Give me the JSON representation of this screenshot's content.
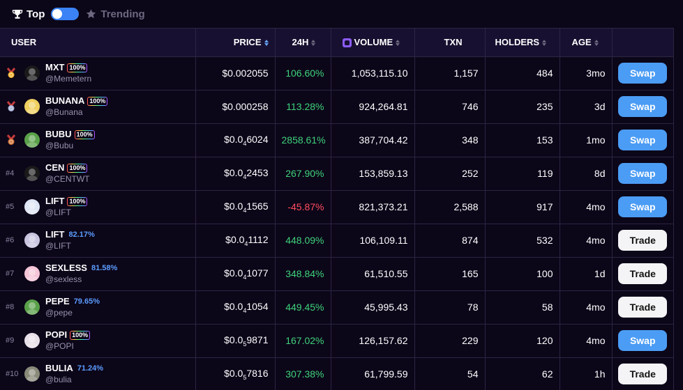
{
  "tabs": {
    "top_label": "Top",
    "trending_label": "Trending"
  },
  "columns": {
    "user": "USER",
    "price": "PRICE",
    "change": "24H",
    "volume": "VOLUME",
    "txn": "TXN",
    "holders": "HOLDERS",
    "age": "AGE"
  },
  "rows": [
    {
      "rank": "",
      "medal": "gold",
      "symbol": "MXT",
      "handle": "@Memetern",
      "badge": "100%",
      "pct": "",
      "price_pre": "$0.002055",
      "price_sub": "",
      "price_post": "",
      "change": "106.60%",
      "change_dir": "up",
      "volume": "1,053,115.10",
      "txn": "1,157",
      "holders": "484",
      "age": "3mo",
      "action": "Swap",
      "action_type": "swap",
      "avatar_color": "#1a1a1a",
      "avatar_icon": "frog-avatar-icon"
    },
    {
      "rank": "",
      "medal": "silver",
      "symbol": "BUNANA",
      "handle": "@Bunana",
      "badge": "100%",
      "pct": "",
      "price_pre": "$0.000258",
      "price_sub": "",
      "price_post": "",
      "change": "113.28%",
      "change_dir": "up",
      "volume": "924,264.81",
      "txn": "746",
      "holders": "235",
      "age": "3d",
      "action": "Swap",
      "action_type": "swap",
      "avatar_color": "#f0d060",
      "avatar_icon": "banana-avatar-icon"
    },
    {
      "rank": "",
      "medal": "bronze",
      "symbol": "BUBU",
      "handle": "@Bubu",
      "badge": "100%",
      "pct": "",
      "price_pre": "$0.0",
      "price_sub": "4",
      "price_post": "6024",
      "change": "2858.61%",
      "change_dir": "up",
      "volume": "387,704.42",
      "txn": "348",
      "holders": "153",
      "age": "1mo",
      "action": "Swap",
      "action_type": "swap",
      "avatar_color": "#5aa04a",
      "avatar_icon": "pepe-avatar-icon"
    },
    {
      "rank": "#4",
      "medal": "",
      "symbol": "CEN",
      "handle": "@CENTWT",
      "badge": "100%",
      "pct": "",
      "price_pre": "$0.0",
      "price_sub": "4",
      "price_post": "2453",
      "change": "267.90%",
      "change_dir": "up",
      "volume": "153,859.13",
      "txn": "252",
      "holders": "119",
      "age": "8d",
      "action": "Swap",
      "action_type": "swap",
      "avatar_color": "#1a1a1a",
      "avatar_icon": "cen-coin-icon"
    },
    {
      "rank": "#5",
      "medal": "",
      "symbol": "LIFT",
      "handle": "@LIFT",
      "badge": "100%",
      "pct": "",
      "price_pre": "$0.0",
      "price_sub": "4",
      "price_post": "1565",
      "change": "-45.87%",
      "change_dir": "down",
      "volume": "821,373.21",
      "txn": "2,588",
      "holders": "917",
      "age": "4mo",
      "action": "Swap",
      "action_type": "swap",
      "avatar_color": "#dfe6f5",
      "avatar_icon": "lift-avatar-icon"
    },
    {
      "rank": "#6",
      "medal": "",
      "symbol": "LIFT",
      "handle": "@LIFT",
      "badge": "",
      "pct": "82.17%",
      "price_pre": "$0.0",
      "price_sub": "4",
      "price_post": "1112",
      "change": "448.09%",
      "change_dir": "up",
      "volume": "106,109.11",
      "txn": "874",
      "holders": "532",
      "age": "4mo",
      "action": "Trade",
      "action_type": "trade",
      "avatar_color": "#c9c4e0",
      "avatar_icon": "lift-avatar-icon"
    },
    {
      "rank": "#7",
      "medal": "",
      "symbol": "SEXLESS",
      "handle": "@sexless",
      "badge": "",
      "pct": "81.58%",
      "price_pre": "$0.0",
      "price_sub": "4",
      "price_post": "1077",
      "change": "348.84%",
      "change_dir": "up",
      "volume": "61,510.55",
      "txn": "165",
      "holders": "100",
      "age": "1d",
      "action": "Trade",
      "action_type": "trade",
      "avatar_color": "#f5c6d8",
      "avatar_icon": "flower-avatar-icon"
    },
    {
      "rank": "#8",
      "medal": "",
      "symbol": "PEPE",
      "handle": "@pepe",
      "badge": "",
      "pct": "79.65%",
      "price_pre": "$0.0",
      "price_sub": "4",
      "price_post": "1054",
      "change": "449.45%",
      "change_dir": "up",
      "volume": "45,995.43",
      "txn": "78",
      "holders": "58",
      "age": "4mo",
      "action": "Trade",
      "action_type": "trade",
      "avatar_color": "#5aa04a",
      "avatar_icon": "pepe-avatar-icon"
    },
    {
      "rank": "#9",
      "medal": "",
      "symbol": "POPI",
      "handle": "@POPI",
      "badge": "100%",
      "pct": "",
      "price_pre": "$0.0",
      "price_sub": "5",
      "price_post": "9871",
      "change": "167.02%",
      "change_dir": "up",
      "volume": "126,157.62",
      "txn": "229",
      "holders": "120",
      "age": "4mo",
      "action": "Swap",
      "action_type": "swap",
      "avatar_color": "#e8e0e8",
      "avatar_icon": "popi-avatar-icon"
    },
    {
      "rank": "#10",
      "medal": "",
      "symbol": "BULIA",
      "handle": "@bulia",
      "badge": "",
      "pct": "71.24%",
      "price_pre": "$0.0",
      "price_sub": "5",
      "price_post": "7816",
      "change": "307.38%",
      "change_dir": "up",
      "volume": "61,799.59",
      "txn": "54",
      "holders": "62",
      "age": "1h",
      "action": "Trade",
      "action_type": "trade",
      "avatar_color": "#8a8a7a",
      "avatar_icon": "bulia-avatar-icon"
    }
  ],
  "colors": {
    "positive": "#3ed37a",
    "negative": "#ff4d5e",
    "swap_button": "#4b9cf5",
    "trade_button": "#f4f4f6",
    "accent": "#3b82f6"
  }
}
